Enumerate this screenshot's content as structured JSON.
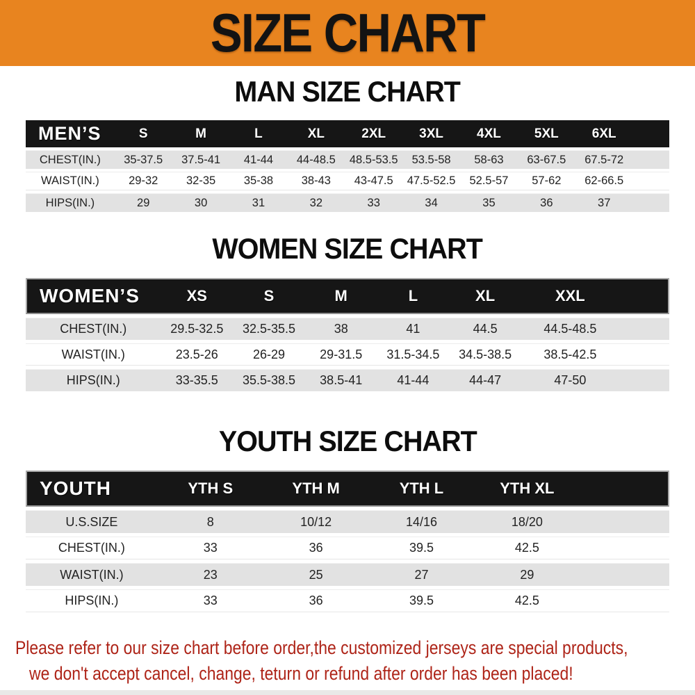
{
  "banner": {
    "title": "SIZE CHART"
  },
  "theme": {
    "banner_bg": "#E8841F",
    "header_bg": "#161616",
    "stripe_bg": "#E2E2E2",
    "footer_color": "#AE2418"
  },
  "sections": [
    {
      "heading": "MAN SIZE CHART",
      "group_label": "MEN’S",
      "sizes": [
        "S",
        "M",
        "L",
        "XL",
        "2XL",
        "3XL",
        "4XL",
        "5XL",
        "6XL"
      ],
      "rows": [
        {
          "label": "CHEST(IN.)",
          "values": [
            "35-37.5",
            "37.5-41",
            "41-44",
            "44-48.5",
            "48.5-53.5",
            "53.5-58",
            "58-63",
            "63-67.5",
            "67.5-72"
          ]
        },
        {
          "label": "WAIST(IN.)",
          "values": [
            "29-32",
            "32-35",
            "35-38",
            "38-43",
            "43-47.5",
            "47.5-52.5",
            "52.5-57",
            "57-62",
            "62-66.5"
          ]
        },
        {
          "label": "HIPS(IN.)",
          "values": [
            "29",
            "30",
            "31",
            "32",
            "33",
            "34",
            "35",
            "36",
            "37"
          ]
        }
      ]
    },
    {
      "heading": "WOMEN SIZE CHART",
      "group_label": "WOMEN’S",
      "sizes": [
        "XS",
        "S",
        "M",
        "L",
        "XL",
        "XXL"
      ],
      "rows": [
        {
          "label": "CHEST(IN.)",
          "values": [
            "29.5-32.5",
            "32.5-35.5",
            "38",
            "41",
            "44.5",
            "44.5-48.5"
          ]
        },
        {
          "label": "WAIST(IN.)",
          "values": [
            "23.5-26",
            "26-29",
            "29-31.5",
            "31.5-34.5",
            "34.5-38.5",
            "38.5-42.5"
          ]
        },
        {
          "label": "HIPS(IN.)",
          "values": [
            "33-35.5",
            "35.5-38.5",
            "38.5-41",
            "41-44",
            "44-47",
            "47-50"
          ]
        }
      ]
    },
    {
      "heading": "YOUTH SIZE CHART",
      "group_label": "YOUTH",
      "sizes": [
        "YTH S",
        "YTH M",
        "YTH L",
        "YTH XL"
      ],
      "rows": [
        {
          "label": "U.S.SIZE",
          "values": [
            "8",
            "10/12",
            "14/16",
            "18/20"
          ]
        },
        {
          "label": "CHEST(IN.)",
          "values": [
            "33",
            "36",
            "39.5",
            "42.5"
          ]
        },
        {
          "label": "WAIST(IN.)",
          "values": [
            "23",
            "25",
            "27",
            "29"
          ]
        },
        {
          "label": "HIPS(IN.)",
          "values": [
            "33",
            "36",
            "39.5",
            "42.5"
          ]
        }
      ]
    }
  ],
  "footer": {
    "line1": "Please refer to our size chart before order,the customized jerseys are special products,",
    "line2": "we don't accept cancel, change, teturn or refund after order has been placed!"
  }
}
